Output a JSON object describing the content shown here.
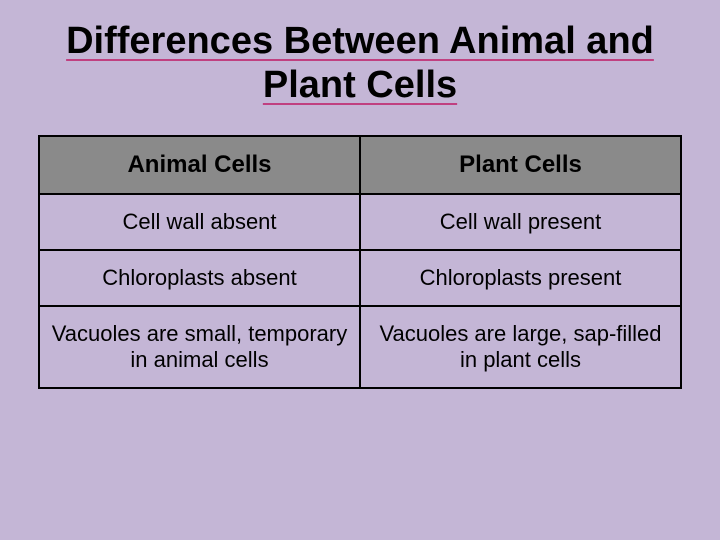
{
  "slide": {
    "background_color": "#c4b6d6",
    "title": "Differences Between Animal and Plant Cells",
    "title_color": "#000000",
    "title_underline_color": "#c04080",
    "title_fontsize": 38
  },
  "table": {
    "border_color": "#000000",
    "header_bg": "#8a8a8a",
    "header_text_color": "#000000",
    "header_fontsize": 24,
    "cell_bg": "transparent",
    "cell_text_color": "#000000",
    "cell_fontsize": 22,
    "columns": [
      "Animal Cells",
      "Plant Cells"
    ],
    "rows": [
      [
        "Cell wall absent",
        "Cell wall present"
      ],
      [
        "Chloroplasts absent",
        "Chloroplasts present"
      ],
      [
        "Vacuoles are small, temporary in animal cells",
        "Vacuoles are large, sap-filled in plant cells"
      ]
    ]
  }
}
